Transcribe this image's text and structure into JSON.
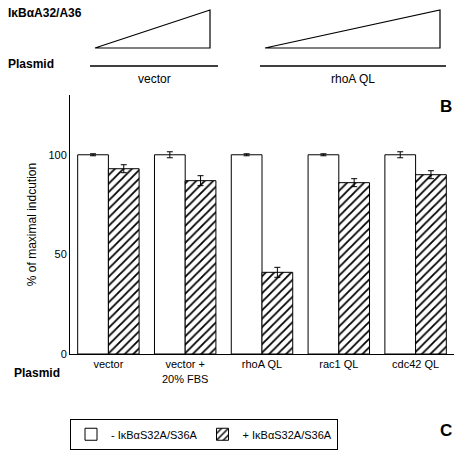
{
  "chart_data": {
    "type": "bar",
    "ylabel": "% of maximal indcution",
    "categories": [
      "vector",
      "vector +\n20% FBS",
      "rhoA QL",
      "rac1 QL",
      "cdc42 QL"
    ],
    "series": [
      {
        "name": "- IκBαS32A/S36A",
        "color": "white",
        "values": [
          100,
          100,
          100,
          100,
          100
        ],
        "errors": [
          0.5,
          1.5,
          0.5,
          0.5,
          1.5
        ]
      },
      {
        "name": "+ IκBαS32A/S36A",
        "color": "white",
        "values": [
          93,
          87,
          41,
          86,
          90
        ],
        "errors": [
          2.0,
          2.5,
          2.5,
          2.0,
          2.0
        ]
      }
    ],
    "ylim": [
      0,
      130
    ],
    "yticks": [
      0,
      50,
      100
    ],
    "grid": false,
    "legend": "bottom",
    "annotations": [
      "IκBαA32/A36",
      "Plasmid",
      "vector",
      "rhoA QL",
      "B",
      "Plasmid",
      "C"
    ]
  }
}
